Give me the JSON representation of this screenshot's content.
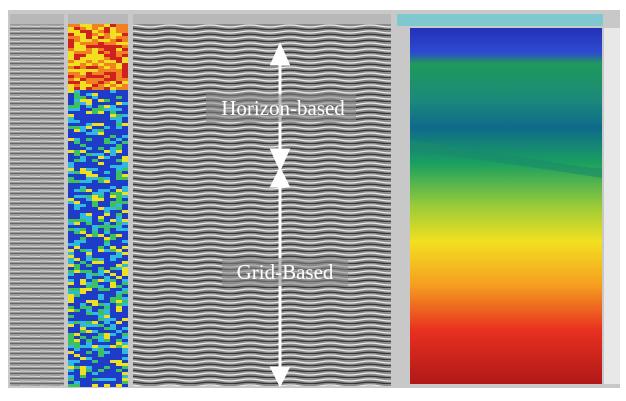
{
  "annotations": {
    "horizon_label": "Horizon-based",
    "grid_label": "Grid-Based"
  }
}
